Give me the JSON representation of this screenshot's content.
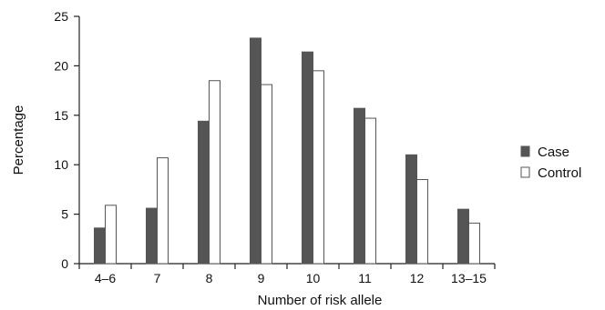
{
  "chart_data": {
    "type": "bar",
    "title": "",
    "xlabel": "Number of risk allele",
    "ylabel": "Percentage",
    "ylim": [
      0,
      25
    ],
    "yticks": [
      0,
      5,
      10,
      15,
      20,
      25
    ],
    "grid": false,
    "legend_position": "right",
    "categories": [
      "4–6",
      "7",
      "8",
      "9",
      "10",
      "11",
      "12",
      "13–15"
    ],
    "series": [
      {
        "name": "Case",
        "color": "#555555",
        "values": [
          3.6,
          5.6,
          14.4,
          22.8,
          21.4,
          15.7,
          11.0,
          5.5
        ]
      },
      {
        "name": "Control",
        "color": "#ffffff",
        "values": [
          5.9,
          10.7,
          18.5,
          18.1,
          19.5,
          14.7,
          8.5,
          4.1
        ]
      }
    ]
  }
}
